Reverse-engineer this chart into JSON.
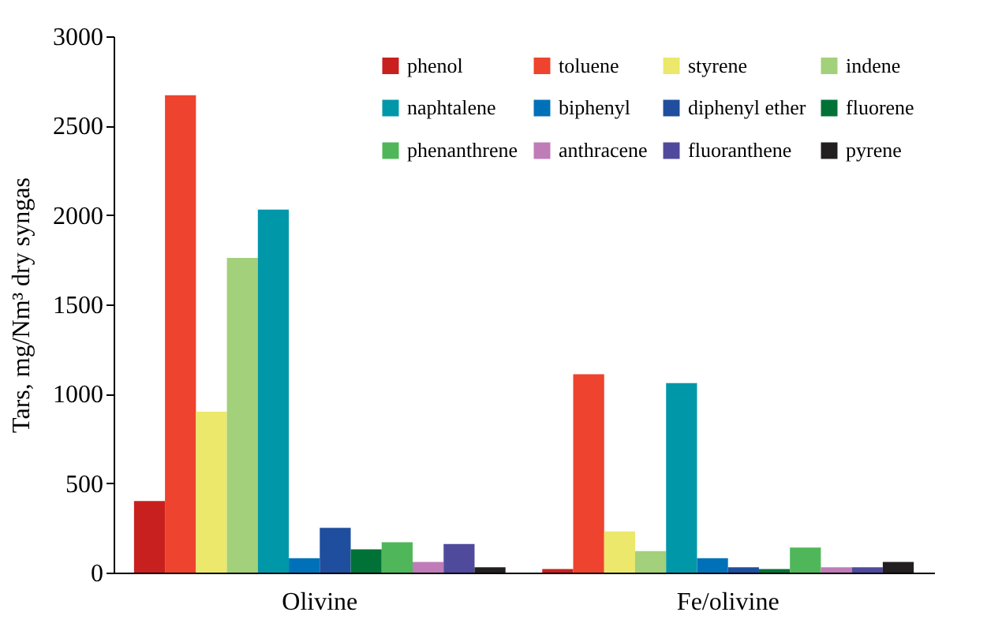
{
  "chart_data": {
    "type": "bar",
    "ylabel": "Tars, mg/Nm³ dry syngas",
    "categories": [
      "Olivine",
      "Fe/olivine"
    ],
    "series": [
      {
        "name": "phenol",
        "color": "#c8201f",
        "values": [
          400,
          20
        ]
      },
      {
        "name": "toluene",
        "color": "#ee432e",
        "values": [
          2670,
          1110
        ]
      },
      {
        "name": "styrene",
        "color": "#ebe86c",
        "values": [
          900,
          230
        ]
      },
      {
        "name": "indene",
        "color": "#a3d07a",
        "values": [
          1760,
          120
        ]
      },
      {
        "name": "naphtalene",
        "color": "#0097a9",
        "values": [
          2030,
          1060
        ]
      },
      {
        "name": "biphenyl",
        "color": "#0071b8",
        "values": [
          80,
          80
        ]
      },
      {
        "name": "diphenyl ether",
        "color": "#1f4e9f",
        "values": [
          250,
          30
        ]
      },
      {
        "name": "fluorene",
        "color": "#007238",
        "values": [
          130,
          20
        ]
      },
      {
        "name": "phenanthrene",
        "color": "#4fb75a",
        "values": [
          170,
          140
        ]
      },
      {
        "name": "anthracene",
        "color": "#bf7cb8",
        "values": [
          60,
          30
        ]
      },
      {
        "name": "fluoranthene",
        "color": "#4f4a9c",
        "values": [
          160,
          30
        ]
      },
      {
        "name": "pyrene",
        "color": "#231f20",
        "values": [
          30,
          60
        ]
      }
    ],
    "ylim": [
      0,
      3000
    ],
    "yticks": [
      0,
      500,
      1000,
      1500,
      2000,
      2500,
      3000
    ],
    "legend": "top right"
  }
}
